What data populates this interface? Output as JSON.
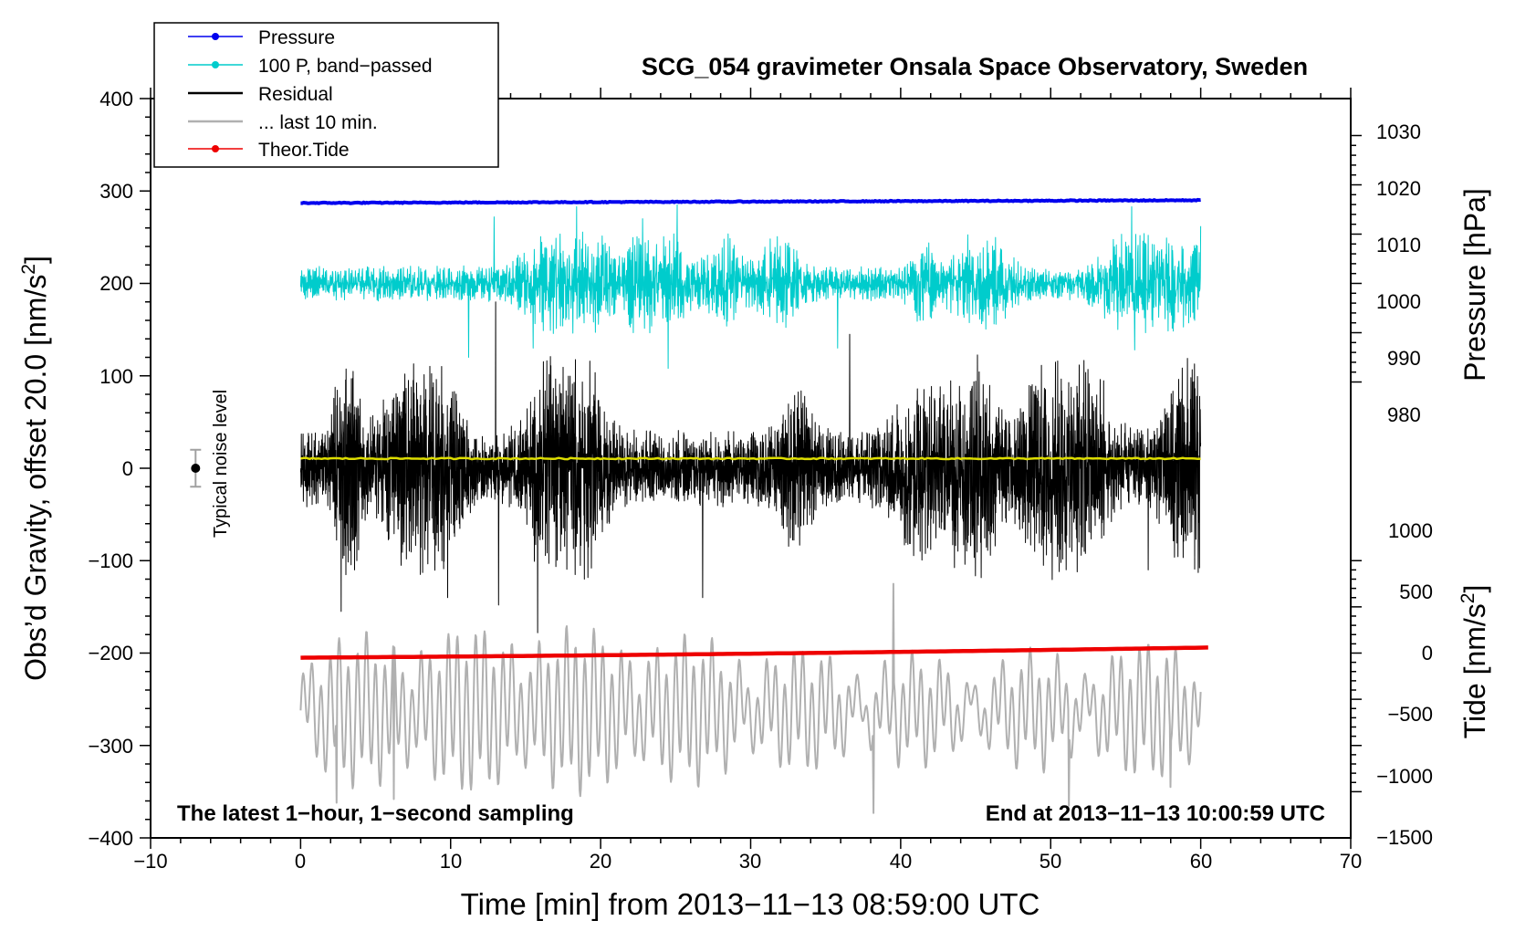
{
  "chart_data": {
    "type": "line",
    "title": "SCG_054 gravimeter Onsala Space Observatory, Sweden",
    "xlabel": "Time [min] from 2013−11−13 08:59:00 UTC",
    "ylabel_left": "Obs’d Gravity, offset 20.0 [nm/s",
    "ylabel_left_sup": "2",
    "ylabel_left_end": "]",
    "ylabel_pressure": "Pressure [hPa]",
    "ylabel_tide": "Tide [nm/s",
    "ylabel_tide_sup": "2",
    "ylabel_tide_end": "]",
    "xlim": [
      -10,
      70
    ],
    "ylim": [
      -400,
      400
    ],
    "x_ticks": [
      "−10",
      "0",
      "10",
      "20",
      "30",
      "40",
      "50",
      "60",
      "70"
    ],
    "y_ticks": [
      "400",
      "300",
      "200",
      "100",
      "0",
      "−100",
      "−200",
      "−300",
      "−400"
    ],
    "pressure_ticks": [
      "1030",
      "1020",
      "1010",
      "1000",
      "990",
      "980"
    ],
    "pressure_tick_values": [
      1030,
      1020,
      1010,
      1000,
      990,
      980
    ],
    "pressure_axis": {
      "hpa_a": 1000,
      "y_a": 200,
      "hpa_b": 1030,
      "y_b": 360
    },
    "tide_ticks": [
      "1000",
      "500",
      "0",
      "−500",
      "−1000",
      "−1500"
    ],
    "tide_tick_values": [
      1000,
      500,
      0,
      -500,
      -1000,
      -1500
    ],
    "tide_axis": {
      "nms2_a": 0,
      "y_a": -200,
      "nms2_b": 1000,
      "y_b": -100
    },
    "legend": [
      {
        "label": "Pressure",
        "color": "#0000ee",
        "marker": true
      },
      {
        "label": "100 P, band−passed",
        "color": "#00cccc",
        "marker": true
      },
      {
        "label": "Residual",
        "color": "#000000",
        "marker": false
      },
      {
        "label": "... last 10 min.",
        "color": "#b0b0b0",
        "marker": false
      },
      {
        "label": "Theor.Tide",
        "color": "#ee0000",
        "marker": true
      }
    ],
    "legend_position": "top-left",
    "annotation_left": "The latest 1−hour, 1−second sampling",
    "annotation_right": "End at 2013−11−13 10:00:59 UTC",
    "noise_label": "Typical noise level",
    "noise_bar": {
      "x": -7,
      "y": 0,
      "halfwidth": 20
    },
    "series": [
      {
        "name": "Pressure",
        "color": "#0000ee",
        "x_range": [
          0,
          60
        ],
        "start": 287,
        "end": 290,
        "noise": 0.5
      },
      {
        "name": "100 P, band−passed",
        "color": "#00cccc",
        "x_range": [
          0,
          60
        ],
        "center": 200,
        "amplitude": 25,
        "peaks": [
          {
            "x": 12.9,
            "y": 272
          },
          {
            "x": 18.4,
            "y": 283
          },
          {
            "x": 22.8,
            "y": 270
          },
          {
            "x": 25.1,
            "y": 285
          },
          {
            "x": 55.4,
            "y": 283
          },
          {
            "x": 60,
            "y": 262
          },
          {
            "x": 15.5,
            "y": 130
          },
          {
            "x": 11.2,
            "y": 120
          },
          {
            "x": 24.5,
            "y": 108
          },
          {
            "x": 55.6,
            "y": 128
          },
          {
            "x": 35.8,
            "y": 130
          }
        ]
      },
      {
        "name": "Residual",
        "color": "#000000",
        "x_range": [
          0,
          60
        ],
        "center": 0,
        "amplitude": 55,
        "peaks": [
          {
            "x": 2.7,
            "y": 180
          },
          {
            "x": 2.7,
            "y": -155
          },
          {
            "x": 13.0,
            "y": 180
          },
          {
            "x": 13.2,
            "y": -148
          },
          {
            "x": 15.8,
            "y": 160
          },
          {
            "x": 15.8,
            "y": -178
          },
          {
            "x": 26.8,
            "y": 155
          },
          {
            "x": 26.8,
            "y": -140
          },
          {
            "x": 36.6,
            "y": 145
          },
          {
            "x": 9.8,
            "y": -140
          },
          {
            "x": 56.5,
            "y": -110
          }
        ]
      },
      {
        "name": "Residual mean",
        "color": "#dddd00",
        "x_range": [
          0,
          60
        ],
        "value": 10.5
      },
      {
        "name": "... last 10 min.",
        "color": "#b0b0b0",
        "x_range": [
          0,
          60
        ],
        "center": -262,
        "amplitude": 60,
        "peaks": [
          {
            "x": 2.4,
            "y": -362
          },
          {
            "x": 6.2,
            "y": -358
          },
          {
            "x": 38.2,
            "y": -373
          },
          {
            "x": 39.5,
            "y": -125
          },
          {
            "x": 51.2,
            "y": -365
          },
          {
            "x": 58.0,
            "y": -345
          }
        ]
      },
      {
        "name": "Theor.Tide",
        "color": "#ee0000",
        "x_range": [
          0,
          60.5
        ],
        "start": -205,
        "end": -194
      }
    ]
  }
}
